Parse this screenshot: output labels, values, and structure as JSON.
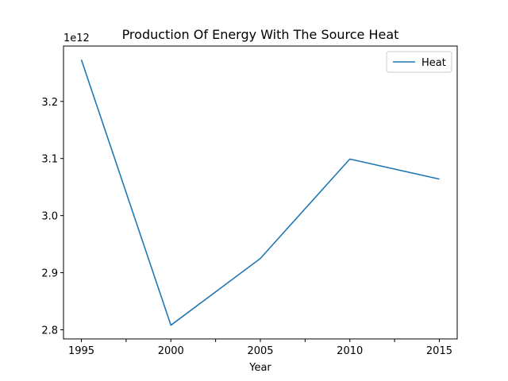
{
  "chart_data": {
    "type": "line",
    "title": "Production Of Energy With The Source Heat",
    "xlabel": "Year",
    "ylabel": "",
    "y_offset_label": "1e12",
    "x": [
      1995,
      2000,
      2005,
      2010,
      2015
    ],
    "x_ticks": [
      1995,
      1997.5,
      2000,
      2002.5,
      2005,
      2007.5,
      2010,
      2012.5,
      2015
    ],
    "x_tick_labels": [
      "1995",
      "",
      "2000",
      "",
      "2005",
      "",
      "2010",
      "",
      "2015"
    ],
    "xlim": [
      1994.0,
      2016.0
    ],
    "y_ticks": [
      2.8,
      2.9,
      3.0,
      3.1,
      3.2
    ],
    "y_tick_labels": [
      "2.8",
      "2.9",
      "3.0",
      "3.1",
      "3.2"
    ],
    "ylim": [
      2.784,
      3.297
    ],
    "y_unit_scale": 1000000000000.0,
    "series": [
      {
        "name": "Heat",
        "color": "#1f77b4",
        "values": [
          3273000000000.0,
          2808000000000.0,
          2925000000000.0,
          3099000000000.0,
          3064000000000.0
        ]
      }
    ],
    "legend": "top-right",
    "grid": false
  }
}
